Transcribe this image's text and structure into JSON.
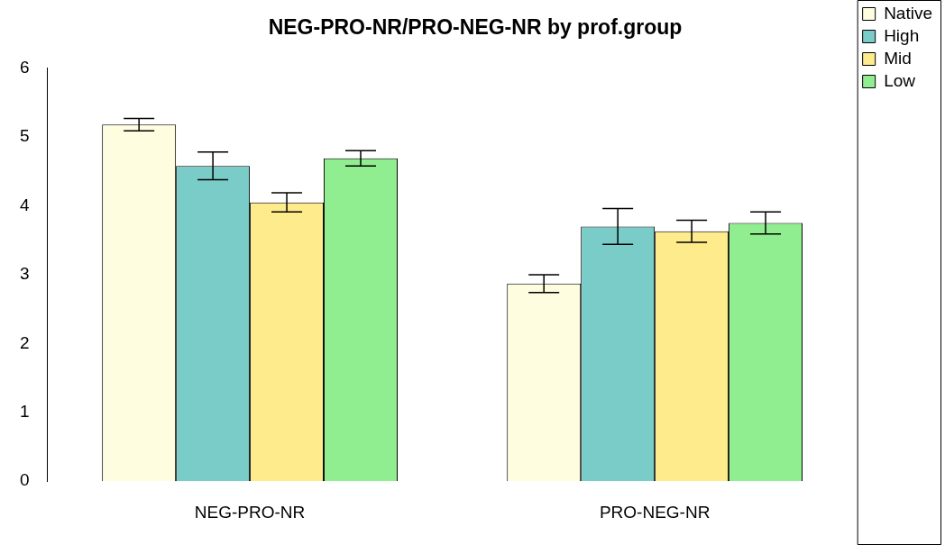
{
  "chart_data": {
    "type": "bar",
    "title": "NEG-PRO-NR/PRO-NEG-NR by prof.group",
    "categories": [
      "NEG-PRO-NR",
      "PRO-NEG-NR"
    ],
    "series": [
      {
        "name": "Native",
        "color": "#fffde0",
        "values": [
          5.18,
          2.87
        ],
        "errors": [
          0.09,
          0.13
        ]
      },
      {
        "name": "High",
        "color": "#7accc8",
        "values": [
          4.58,
          3.7
        ],
        "errors": [
          0.2,
          0.26
        ]
      },
      {
        "name": "Mid",
        "color": "#feeb8c",
        "values": [
          4.05,
          3.63
        ],
        "errors": [
          0.14,
          0.16
        ]
      },
      {
        "name": "Low",
        "color": "#90ee90",
        "values": [
          4.69,
          3.75
        ],
        "errors": [
          0.11,
          0.16
        ]
      }
    ],
    "ylim": [
      0,
      6
    ],
    "yticks": [
      0,
      1,
      2,
      3,
      4,
      5,
      6
    ],
    "grid": false,
    "legend": "top right"
  }
}
